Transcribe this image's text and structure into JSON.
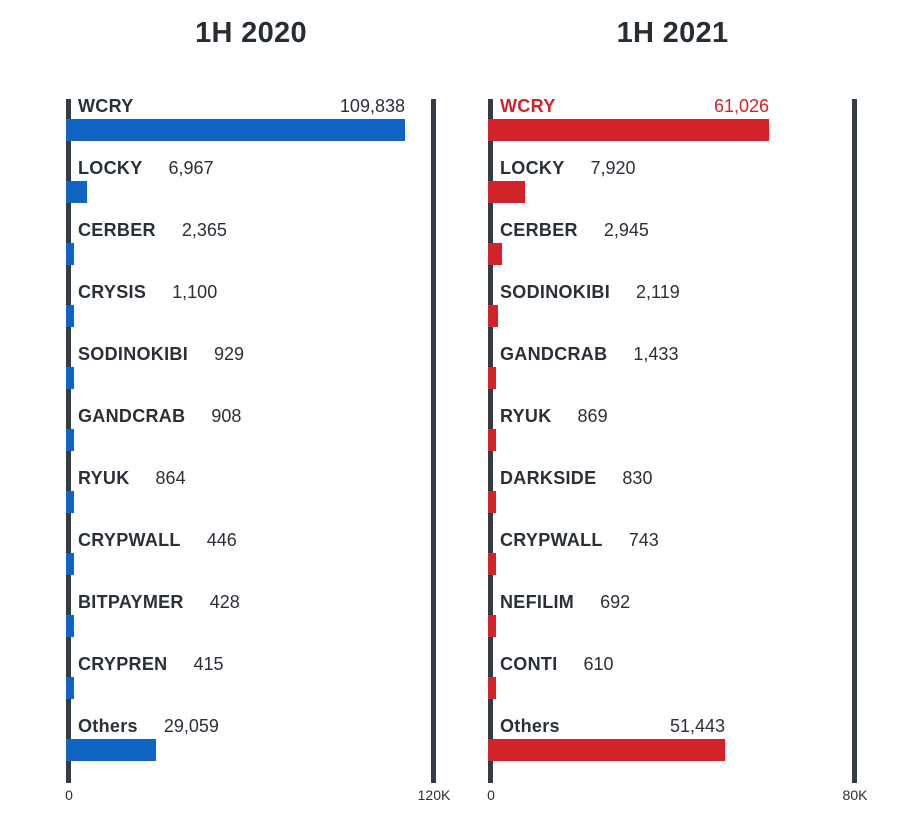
{
  "page": {
    "background": "#ffffff",
    "text_color": "#2a3037"
  },
  "chart_data": [
    {
      "type": "bar",
      "orientation": "horizontal",
      "title": "1H 2020",
      "categories": [
        "WCRY",
        "LOCKY",
        "CERBER",
        "CRYSIS",
        "SODINOKIBI",
        "GANDCRAB",
        "RYUK",
        "CRYPWALL",
        "BITPAYMER",
        "CRYPREN",
        "Others"
      ],
      "values": [
        109838,
        6967,
        2365,
        1100,
        929,
        908,
        864,
        446,
        428,
        415,
        29059
      ],
      "value_labels": [
        "109,838",
        "6,967",
        "2,365",
        "1,100",
        "929",
        "908",
        "864",
        "446",
        "428",
        "415",
        "29,059"
      ],
      "xlim": [
        0,
        120000
      ],
      "x_ticks": [
        "0",
        "120K"
      ],
      "bar_color": "#1064c4",
      "text_color": "#2a3037",
      "axis_line_color": "#363c43",
      "highlight_index": null,
      "highlight_color": null,
      "grid": false,
      "legend": false
    },
    {
      "type": "bar",
      "orientation": "horizontal",
      "title": "1H 2021",
      "categories": [
        "WCRY",
        "LOCKY",
        "CERBER",
        "SODINOKIBI",
        "GANDCRAB",
        "RYUK",
        "DARKSIDE",
        "CRYPWALL",
        "NEFILIM",
        "CONTI",
        "Others"
      ],
      "values": [
        61026,
        7920,
        2945,
        2119,
        1433,
        869,
        830,
        743,
        692,
        610,
        51443
      ],
      "value_labels": [
        "61,026",
        "7,920",
        "2,945",
        "2,119",
        "1,433",
        "869",
        "830",
        "743",
        "692",
        "610",
        "51,443"
      ],
      "xlim": [
        0,
        80000
      ],
      "x_ticks": [
        "0",
        "80K"
      ],
      "bar_color": "#d2222a",
      "text_color": "#2a3037",
      "axis_line_color": "#363c43",
      "highlight_index": 0,
      "highlight_color": "#d2222a",
      "grid": false,
      "legend": false
    }
  ]
}
